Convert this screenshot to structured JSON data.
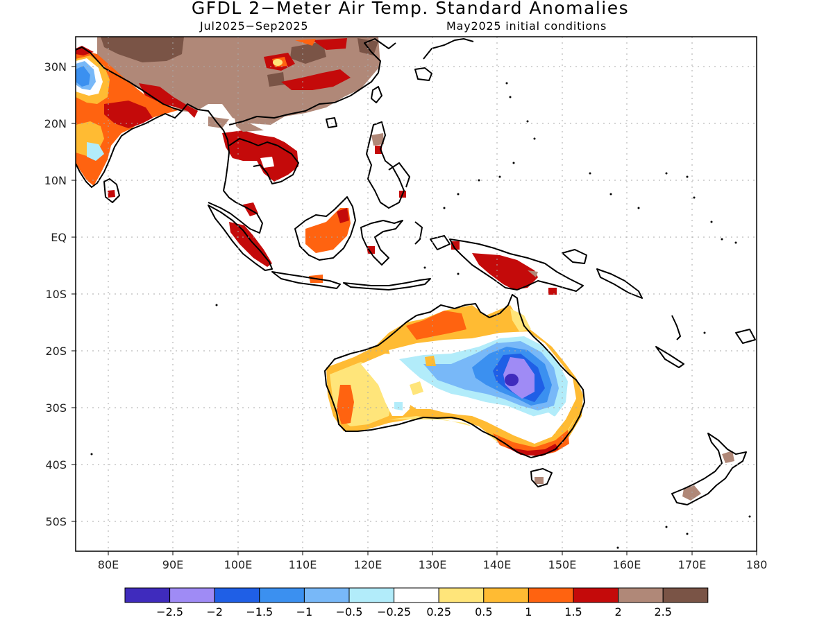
{
  "title": "GFDL 2−Meter Air Temp. Standard Anomalies",
  "subtitle_left": "Jul2025−Sep2025",
  "subtitle_right": "May2025 initial conditions",
  "lat_labels": [
    "30N",
    "20N",
    "10N",
    "EQ",
    "10S",
    "20S",
    "30S",
    "40S",
    "50S"
  ],
  "lon_labels": [
    "80E",
    "90E",
    "100E",
    "110E",
    "120E",
    "130E",
    "140E",
    "150E",
    "160E",
    "170E",
    "180"
  ],
  "colorbar": {
    "colors": [
      "#3f2bbd",
      "#9f8bf5",
      "#1f5fe6",
      "#3b90f0",
      "#78b8f8",
      "#b2ecfa",
      "#ffffff",
      "#ffe57a",
      "#ffbb33",
      "#ff6310",
      "#c40a0a",
      "#b08878",
      "#7a5446"
    ],
    "labels": [
      "−2.5",
      "−2",
      "−1.5",
      "−1",
      "−0.5",
      "−0.25",
      "0.25",
      "0.5",
      "1",
      "1.5",
      "2",
      "2.5"
    ]
  },
  "map_data": {
    "region": {
      "lon_range": [
        75,
        180
      ],
      "lat_range": [
        -55,
        35
      ]
    },
    "features": {
      "india_south": "orange/red warm anomalies with a blue cold patch near 27N 78E",
      "china_south_asia_mainland": "brown anomalies > 2.5 over much of southern China, dark red over Indochina",
      "borneo": "orange 1.5 anomaly",
      "new_guinea": "dark red 2 anomaly",
      "australia_interior_east": "blue to purple cold anomalies, minimum below −2.5 near 25S 142E",
      "australia_north_west_south": "yellow/orange/red warm anomalies"
    }
  }
}
